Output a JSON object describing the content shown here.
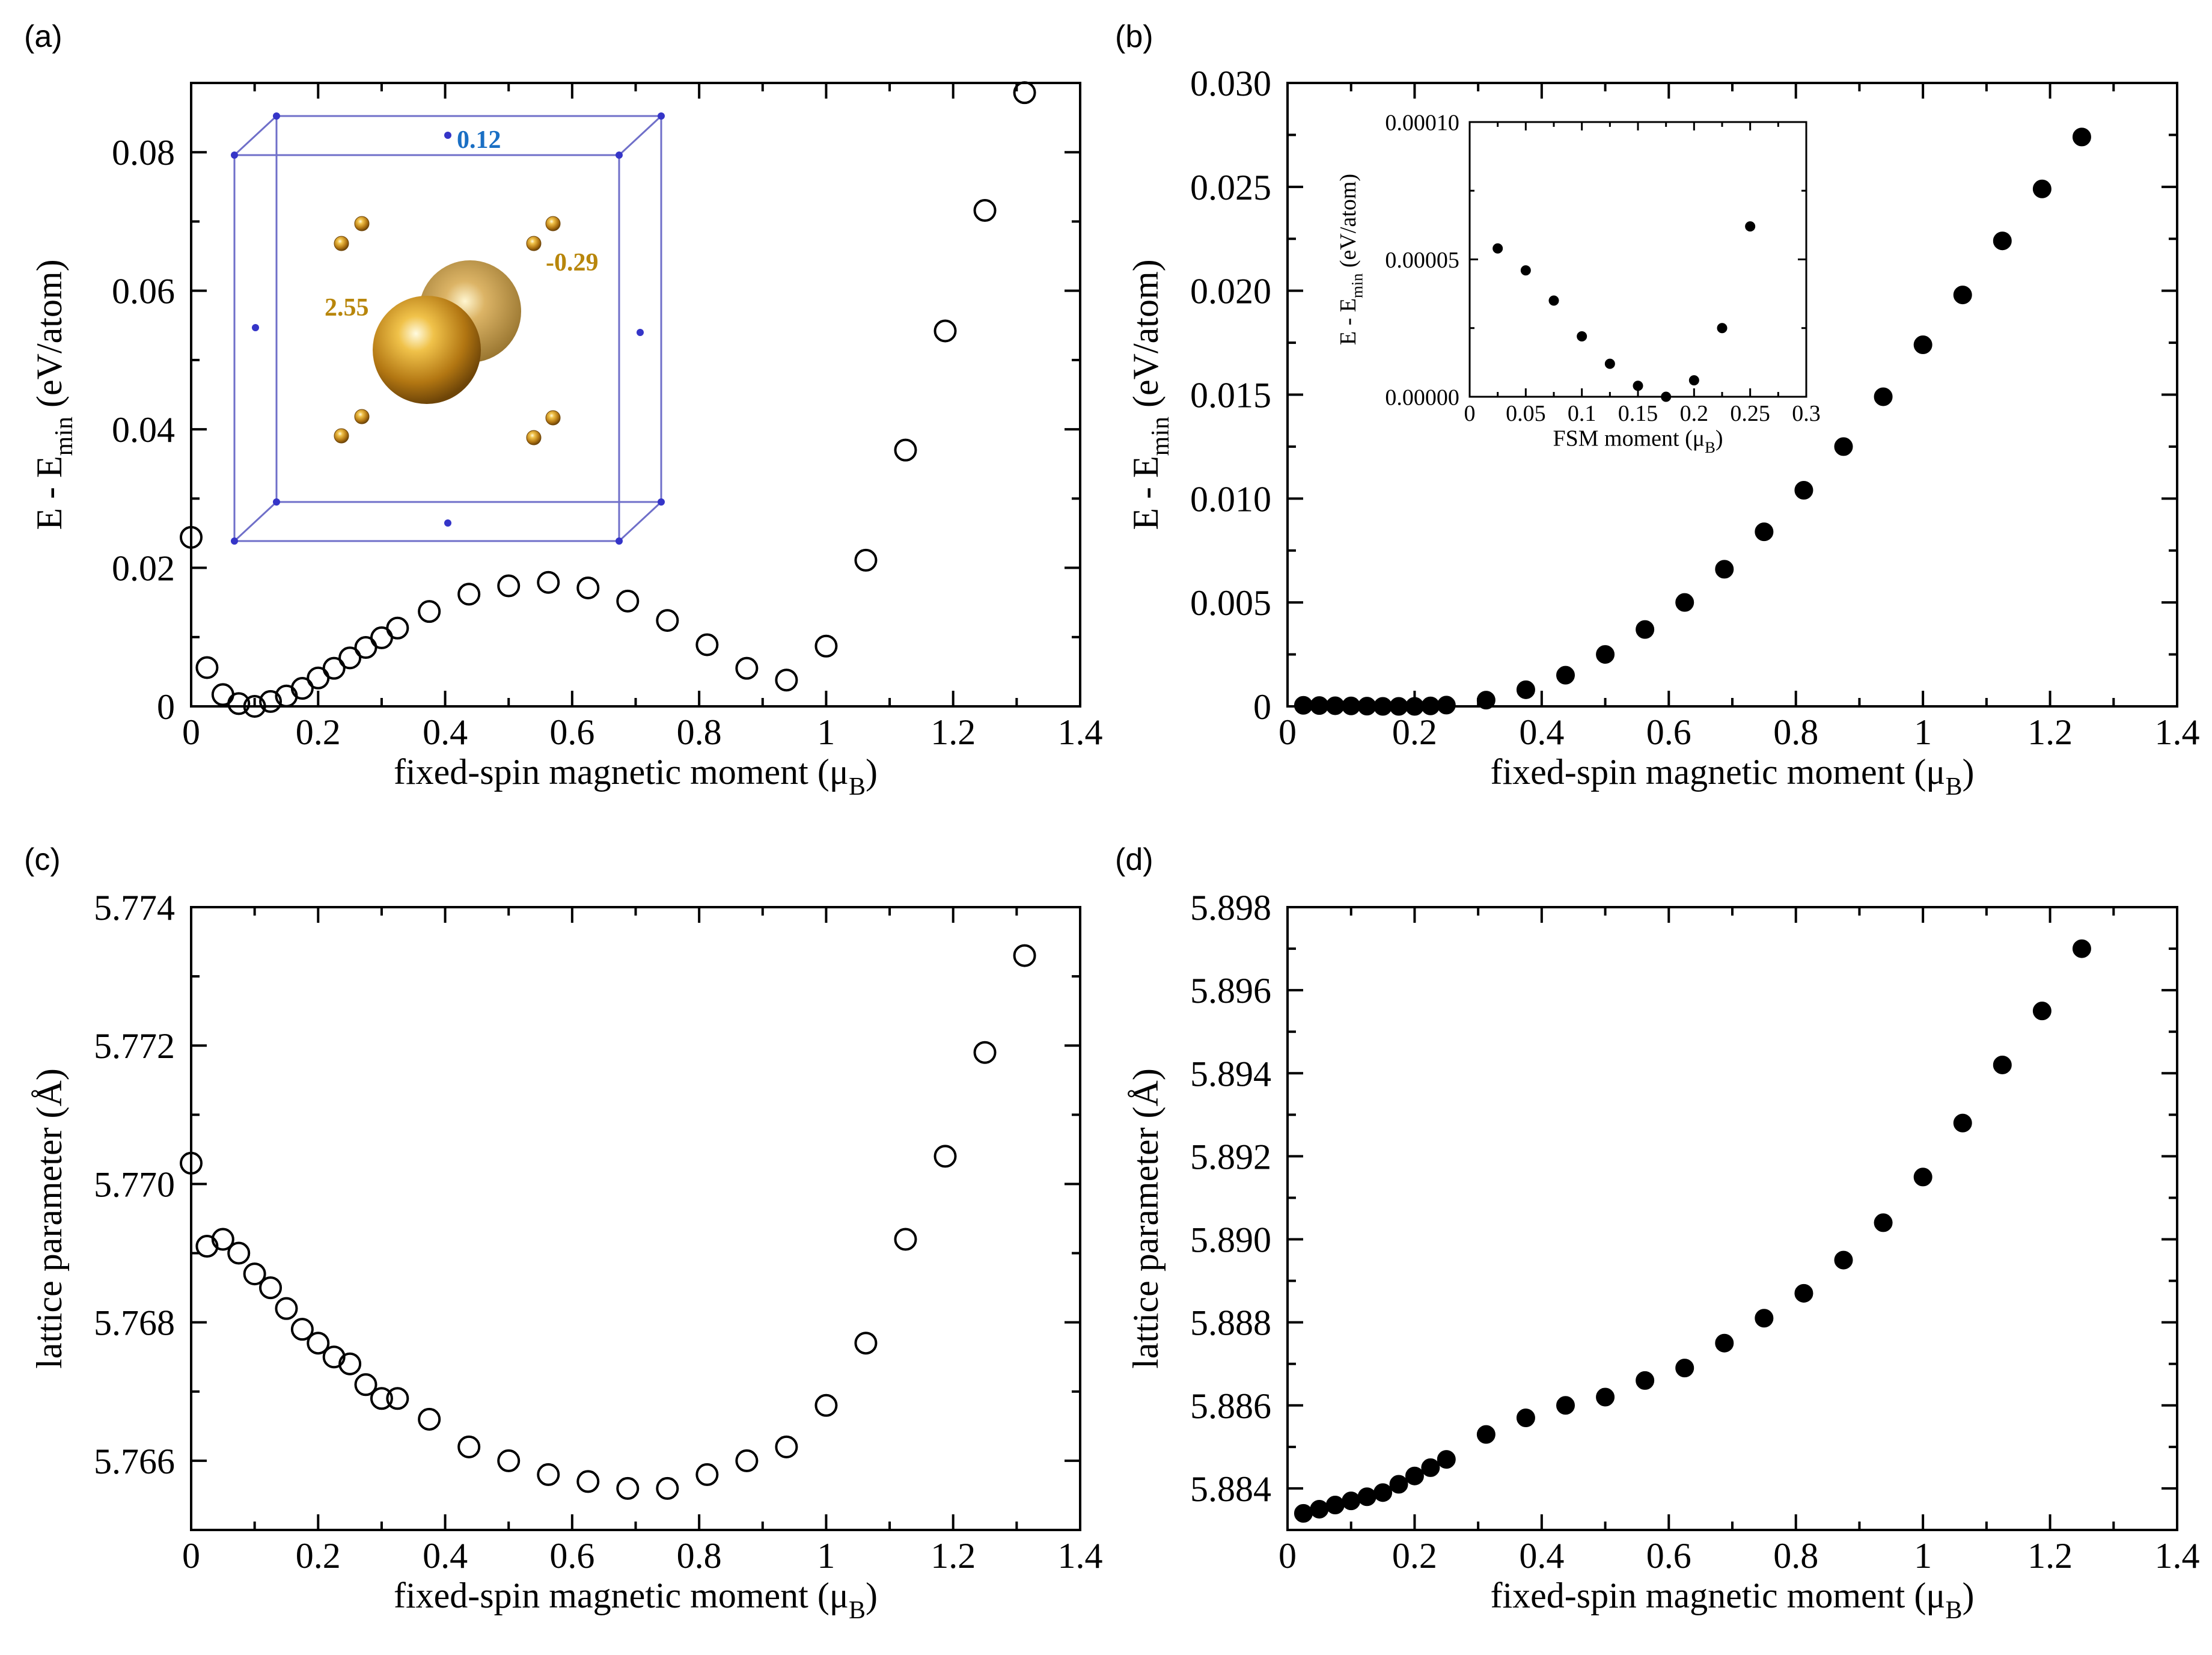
{
  "chart_data": [
    {
      "id": "a",
      "panel_label": "(a)",
      "type": "scatter",
      "marker": "open",
      "xlabel": "fixed-spin magnetic moment",
      "xlabel_sub": "(μ",
      "xlabel_subscript": "B",
      "xlabel_close": ")",
      "ylabel_main": "E - E",
      "ylabel_sub": "min",
      "ylabel_tail": " (eV/atom)",
      "xlim": [
        0,
        1.4
      ],
      "ylim": [
        0,
        0.09
      ],
      "xticks": [
        0,
        0.2,
        0.4,
        0.6,
        0.8,
        1,
        1.2,
        1.4
      ],
      "xtick_labels": [
        "0",
        "0.2",
        "0.4",
        "0.6",
        "0.8",
        "1",
        "1.2",
        "1.4"
      ],
      "yticks": [
        0,
        0.02,
        0.04,
        0.06,
        0.08
      ],
      "ytick_labels": [
        "0",
        "0.02",
        "0.04",
        "0.06",
        "0.08"
      ],
      "x": [
        0,
        0.025,
        0.05,
        0.075,
        0.1,
        0.125,
        0.15,
        0.175,
        0.2,
        0.225,
        0.25,
        0.275,
        0.3,
        0.325,
        0.375,
        0.4375,
        0.5,
        0.5625,
        0.625,
        0.6875,
        0.75,
        0.8125,
        0.875,
        0.9375,
        1.0,
        1.0625,
        1.125,
        1.1875,
        1.25,
        1.3125
      ],
      "y": [
        0.0244,
        0.0056,
        0.0017,
        0.0004,
        0.0,
        0.0007,
        0.0015,
        0.0026,
        0.0041,
        0.0055,
        0.007,
        0.0085,
        0.0099,
        0.0113,
        0.0137,
        0.0162,
        0.0174,
        0.0179,
        0.0171,
        0.0152,
        0.0124,
        0.0089,
        0.0055,
        0.0038,
        0.0087,
        0.0211,
        0.037,
        0.0542,
        0.0716,
        0.0886
      ],
      "inset_structure": {
        "labels": [
          "0.12",
          "2.55",
          "-0.29"
        ],
        "colors": {
          "blue": "#1a6fc4",
          "gold": "#b8860b",
          "frame": "#6f6fc9",
          "atom_blue": "#3535c8"
        }
      }
    },
    {
      "id": "b",
      "panel_label": "(b)",
      "type": "scatter",
      "marker": "filled",
      "xlabel": "fixed-spin magnetic moment",
      "xlabel_sub": "(μ",
      "xlabel_subscript": "B",
      "xlabel_close": ")",
      "ylabel_main": "E - E",
      "ylabel_sub": "min",
      "ylabel_tail": " (eV/atom)",
      "xlim": [
        0,
        1.4
      ],
      "ylim": [
        0,
        0.03
      ],
      "xticks": [
        0,
        0.2,
        0.4,
        0.6,
        0.8,
        1,
        1.2,
        1.4
      ],
      "xtick_labels": [
        "0",
        "0.2",
        "0.4",
        "0.6",
        "0.8",
        "1",
        "1.2",
        "1.4"
      ],
      "yticks": [
        0,
        0.005,
        0.01,
        0.015,
        0.02,
        0.025,
        0.03
      ],
      "ytick_labels": [
        "0",
        "0.005",
        "0.010",
        "0.015",
        "0.020",
        "0.025",
        "0.030"
      ],
      "x": [
        0.025,
        0.05,
        0.075,
        0.1,
        0.125,
        0.15,
        0.175,
        0.2,
        0.225,
        0.25,
        0.3125,
        0.375,
        0.4375,
        0.5,
        0.5625,
        0.625,
        0.6875,
        0.75,
        0.8125,
        0.875,
        0.9375,
        1.0,
        1.0625,
        1.125,
        1.1875,
        1.25
      ],
      "y": [
        5e-05,
        4e-05,
        3e-05,
        2e-05,
        1e-05,
        0.0,
        0.0,
        0.0,
        2e-05,
        6e-05,
        0.0003,
        0.0008,
        0.0015,
        0.0025,
        0.0037,
        0.005,
        0.0066,
        0.0084,
        0.0104,
        0.0125,
        0.0149,
        0.0174,
        0.0198,
        0.0224,
        0.0249,
        0.0274
      ],
      "inset": {
        "type": "scatter",
        "marker": "filled",
        "xlabel": "FSM moment",
        "xlabel_sub": "(μ",
        "xlabel_subscript": "B",
        "xlabel_close": ")",
        "ylabel_main": "E - E",
        "ylabel_sub": "min",
        "ylabel_tail": " (eV/atom)",
        "xlim": [
          0,
          0.3
        ],
        "ylim": [
          0,
          0.0001
        ],
        "xticks": [
          0,
          0.05,
          0.1,
          0.15,
          0.2,
          0.25,
          0.3
        ],
        "xtick_labels": [
          "0",
          "0.05",
          "0.1",
          "0.15",
          "0.2",
          "0.25",
          "0.3"
        ],
        "yticks": [
          0,
          5e-05,
          0.0001
        ],
        "ytick_labels": [
          "0.00000",
          "0.00005",
          "0.00010"
        ],
        "x": [
          0.025,
          0.05,
          0.075,
          0.1,
          0.125,
          0.15,
          0.175,
          0.2,
          0.225,
          0.25
        ],
        "y": [
          5.4e-05,
          4.6e-05,
          3.5e-05,
          2.2e-05,
          1.2e-05,
          4e-06,
          0.0,
          6e-06,
          2.5e-05,
          6.2e-05
        ]
      }
    },
    {
      "id": "c",
      "panel_label": "(c)",
      "type": "scatter",
      "marker": "open",
      "xlabel": "fixed-spin magnetic moment",
      "xlabel_sub": "(μ",
      "xlabel_subscript": "B",
      "xlabel_close": ")",
      "ylabel_main": "lattice parameter (Å)",
      "xlim": [
        0,
        1.4
      ],
      "ylim": [
        5.765,
        5.774
      ],
      "xticks": [
        0,
        0.2,
        0.4,
        0.6,
        0.8,
        1,
        1.2,
        1.4
      ],
      "xtick_labels": [
        "0",
        "0.2",
        "0.4",
        "0.6",
        "0.8",
        "1",
        "1.2",
        "1.4"
      ],
      "yticks": [
        5.766,
        5.768,
        5.77,
        5.772,
        5.774
      ],
      "ytick_labels": [
        "5.766",
        "5.768",
        "5.770",
        "5.772",
        "5.774"
      ],
      "x": [
        0,
        0.025,
        0.05,
        0.075,
        0.1,
        0.125,
        0.15,
        0.175,
        0.2,
        0.225,
        0.25,
        0.275,
        0.3,
        0.325,
        0.375,
        0.4375,
        0.5,
        0.5625,
        0.625,
        0.6875,
        0.75,
        0.8125,
        0.875,
        0.9375,
        1.0,
        1.0625,
        1.125,
        1.1875,
        1.25,
        1.3125
      ],
      "y": [
        5.7703,
        5.7691,
        5.7692,
        5.769,
        5.7687,
        5.7685,
        5.7682,
        5.7679,
        5.7677,
        5.7675,
        5.7674,
        5.7671,
        5.7669,
        5.7669,
        5.7666,
        5.7662,
        5.766,
        5.7658,
        5.7657,
        5.7656,
        5.7656,
        5.7658,
        5.766,
        5.7662,
        5.7668,
        5.7677,
        5.7692,
        5.7704,
        5.7719,
        5.7733
      ]
    },
    {
      "id": "d",
      "panel_label": "(d)",
      "type": "scatter",
      "marker": "filled",
      "xlabel": "fixed-spin magnetic moment",
      "xlabel_sub": "(μ",
      "xlabel_subscript": "B",
      "xlabel_close": ")",
      "ylabel_main": "lattice parameter (Å)",
      "xlim": [
        0,
        1.4
      ],
      "ylim": [
        5.883,
        5.898
      ],
      "xticks": [
        0,
        0.2,
        0.4,
        0.6,
        0.8,
        1,
        1.2,
        1.4
      ],
      "xtick_labels": [
        "0",
        "0.2",
        "0.4",
        "0.6",
        "0.8",
        "1",
        "1.2",
        "1.4"
      ],
      "yticks": [
        5.884,
        5.886,
        5.888,
        5.89,
        5.892,
        5.894,
        5.896,
        5.898
      ],
      "ytick_labels": [
        "5.884",
        "5.886",
        "5.888",
        "5.890",
        "5.892",
        "5.894",
        "5.896",
        "5.898"
      ],
      "x": [
        0.025,
        0.05,
        0.075,
        0.1,
        0.125,
        0.15,
        0.175,
        0.2,
        0.225,
        0.25,
        0.3125,
        0.375,
        0.4375,
        0.5,
        0.5625,
        0.625,
        0.6875,
        0.75,
        0.8125,
        0.875,
        0.9375,
        1.0,
        1.0625,
        1.125,
        1.1875,
        1.25
      ],
      "y": [
        5.8834,
        5.8835,
        5.8836,
        5.8837,
        5.8838,
        5.8839,
        5.8841,
        5.8843,
        5.8845,
        5.8847,
        5.8853,
        5.8857,
        5.886,
        5.8862,
        5.8866,
        5.8869,
        5.8875,
        5.8881,
        5.8887,
        5.8895,
        5.8904,
        5.8915,
        5.8928,
        5.8942,
        5.8955,
        5.897
      ]
    }
  ]
}
